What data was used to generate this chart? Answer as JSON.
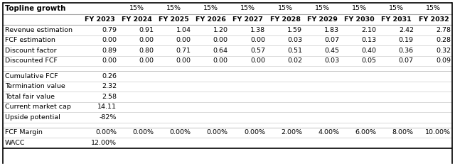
{
  "title": "Topline growth",
  "growth_rate": "15%",
  "years": [
    "FY 2023",
    "FY 2024",
    "FY 2025",
    "FY 2026",
    "FY 2027",
    "FY 2028",
    "FY 2029",
    "FY 2030",
    "FY 2031",
    "FY 2032"
  ],
  "revenue_estimation": [
    0.79,
    0.91,
    1.04,
    1.2,
    1.38,
    1.59,
    1.83,
    2.1,
    2.42,
    2.78
  ],
  "fcf_estimation": [
    0.0,
    0.0,
    0.0,
    0.0,
    0.0,
    0.03,
    0.07,
    0.13,
    0.19,
    0.28
  ],
  "discount_factor": [
    0.89,
    0.8,
    0.71,
    0.64,
    0.57,
    0.51,
    0.45,
    0.4,
    0.36,
    0.32
  ],
  "discounted_fcf": [
    0.0,
    0.0,
    0.0,
    0.0,
    0.0,
    0.02,
    0.03,
    0.05,
    0.07,
    0.09
  ],
  "cumulative_fcf": 0.26,
  "termination_value": 2.32,
  "total_fair_value": 2.58,
  "current_market_cap": 14.11,
  "upside_potential": "-82%",
  "fcf_margin": [
    "0.00%",
    "0.00%",
    "0.00%",
    "0.00%",
    "0.00%",
    "2.00%",
    "4.00%",
    "6.00%",
    "8.00%",
    "10.00%"
  ],
  "wacc": "12.00%"
}
